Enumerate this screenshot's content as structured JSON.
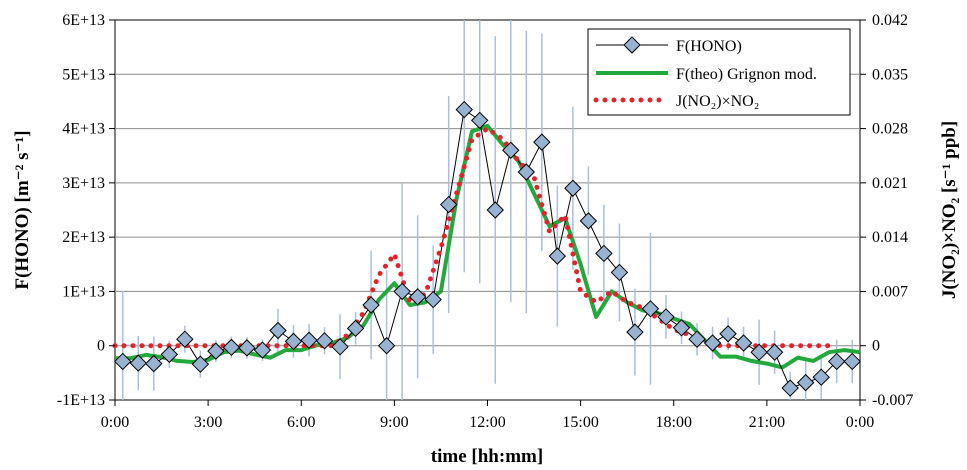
{
  "chart_data": {
    "type": "line",
    "title": "",
    "xlabel": "time [hh:mm]",
    "ylabel": "F(HONO) [m⁻² s⁻¹]",
    "y2label": "J(NO₂)×NO₂ [s⁻¹ ppb]",
    "xlim": [
      0,
      24
    ],
    "ylim": [
      -10000000000000.0,
      60000000000000.0
    ],
    "y2lim": [
      -0.007,
      0.042
    ],
    "grid": "horizontal",
    "legend_position": "top-right",
    "x_ticks": [
      0,
      3,
      6,
      9,
      12,
      15,
      18,
      21,
      24
    ],
    "x_tick_labels": [
      "0:00",
      "3:00",
      "6:00",
      "9:00",
      "12:00",
      "15:00",
      "18:00",
      "21:00",
      "0:00"
    ],
    "y_ticks": [
      -10000000000000.0,
      0,
      10000000000000.0,
      20000000000000.0,
      30000000000000.0,
      40000000000000.0,
      50000000000000.0,
      60000000000000.0
    ],
    "y_tick_labels": [
      "-1E+13",
      "0",
      "1E+13",
      "2E+13",
      "3E+13",
      "4E+13",
      "5E+13",
      "6E+13"
    ],
    "y2_ticks": [
      -0.007,
      0,
      0.007,
      0.014,
      0.021,
      0.028,
      0.035,
      0.042
    ],
    "y2_tick_labels": [
      "-0.007",
      "0",
      "0.007",
      "0.014",
      "0.021",
      "0.028",
      "0.035",
      "0.042"
    ],
    "series": [
      {
        "name": "F(HONO)",
        "axis": "left",
        "color": "#000000",
        "marker": "diamond",
        "marker_fill": "#98b3d2",
        "errorbar_color": "#a9c0dc",
        "x": [
          0.25,
          0.75,
          1.25,
          1.75,
          2.25,
          2.75,
          3.25,
          3.75,
          4.25,
          4.75,
          5.25,
          5.75,
          6.25,
          6.75,
          7.25,
          7.75,
          8.25,
          8.75,
          9.25,
          9.75,
          10.25,
          10.75,
          11.25,
          11.75,
          12.25,
          12.75,
          13.25,
          13.75,
          14.25,
          14.75,
          15.25,
          15.75,
          16.25,
          16.75,
          17.25,
          17.75,
          18.25,
          18.75,
          19.25,
          19.75,
          20.25,
          20.75,
          21.25,
          21.75,
          22.25,
          22.75,
          23.25,
          23.75
        ],
        "values": [
          -2900000000000.0,
          -3200000000000.0,
          -3300000000000.0,
          -1600000000000.0,
          1200000000000.0,
          -3400000000000.0,
          -1000000000000.0,
          -300000000000.0,
          -400000000000.0,
          -800000000000.0,
          2800000000000.0,
          800000000000.0,
          1000000000000.0,
          900000000000.0,
          -200000000000.0,
          3200000000000.0,
          7500000000000.0,
          0,
          10000000000000.0,
          9000000000000.0,
          8500000000000.0,
          26000000000000.0,
          43500000000000.0,
          41500000000000.0,
          25000000000000.0,
          36000000000000.0,
          32000000000000.0,
          37500000000000.0,
          16500000000000.0,
          29000000000000.0,
          23000000000000.0,
          17000000000000.0,
          13500000000000.0,
          2500000000000.0,
          6800000000000.0,
          5300000000000.0,
          3300000000000.0,
          1200000000000.0,
          500000000000.0,
          2200000000000.0,
          500000000000.0,
          -1200000000000.0,
          -1200000000000.0,
          -7800000000000.0,
          -6800000000000.0,
          -5800000000000.0,
          -2900000000000.0,
          -2900000000000.0
        ],
        "errors": [
          13000000000000.0,
          5000000000000.0,
          5000000000000.0,
          2500000000000.0,
          2500000000000.0,
          2500000000000.0,
          2000000000000.0,
          2000000000000.0,
          2000000000000.0,
          2000000000000.0,
          4000000000000.0,
          3000000000000.0,
          3000000000000.0,
          2500000000000.0,
          6000000000000.0,
          3000000000000.0,
          10000000000000.0,
          14000000000000.0,
          20000000000000.0,
          15000000000000.0,
          10000000000000.0,
          20000000000000.0,
          30000000000000.0,
          30000000000000.0,
          32000000000000.0,
          28000000000000.0,
          26000000000000.0,
          20000000000000.0,
          13000000000000.0,
          15000000000000.0,
          10000000000000.0,
          9000000000000.0,
          9000000000000.0,
          8000000000000.0,
          14000000000000.0,
          4000000000000.0,
          3000000000000.0,
          3000000000000.0,
          3000000000000.0,
          3000000000000.0,
          3000000000000.0,
          6000000000000.0,
          4000000000000.0,
          3000000000000.0,
          4000000000000.0,
          4000000000000.0,
          4000000000000.0,
          4000000000000.0
        ]
      },
      {
        "name": "F(theo) Grignon mod.",
        "axis": "left",
        "color": "#23a83b",
        "x": [
          0,
          0.5,
          1,
          1.5,
          2,
          2.5,
          3,
          3.5,
          4,
          4.5,
          5,
          5.5,
          6,
          6.5,
          7,
          7.5,
          8,
          8.5,
          9,
          9.5,
          10,
          10.5,
          11,
          11.5,
          12,
          12.5,
          13,
          13.5,
          14,
          14.5,
          15,
          15.5,
          16,
          16.5,
          17,
          17.5,
          18,
          18.5,
          19,
          19.5,
          20,
          20.5,
          21,
          21.5,
          22,
          22.5,
          23,
          23.5,
          24
        ],
        "values": [
          -2300000000000.0,
          -2300000000000.0,
          -1700000000000.0,
          -2100000000000.0,
          -2800000000000.0,
          -3000000000000.0,
          -2600000000000.0,
          -1200000000000.0,
          -900000000000.0,
          -1600000000000.0,
          -2200000000000.0,
          -800000000000.0,
          -800000000000.0,
          100000000000.0,
          500000000000.0,
          1500000000000.0,
          3700000000000.0,
          8500000000000.0,
          11500000000000.0,
          7500000000000.0,
          8000000000000.0,
          10000000000000.0,
          27000000000000.0,
          39500000000000.0,
          40500000000000.0,
          37000000000000.0,
          34000000000000.0,
          28000000000000.0,
          22000000000000.0,
          23500000000000.0,
          15000000000000.0,
          5300000000000.0,
          10000000000000.0,
          8000000000000.0,
          6500000000000.0,
          6000000000000.0,
          5000000000000.0,
          4000000000000.0,
          1000000000000.0,
          -2000000000000.0,
          -2000000000000.0,
          -2800000000000.0,
          -3300000000000.0,
          -4000000000000.0,
          -2200000000000.0,
          -2800000000000.0,
          -1200000000000.0,
          -800000000000.0,
          -1200000000000.0
        ]
      },
      {
        "name": "J(NO₂)×NO₂",
        "axis": "right",
        "color": "#e8202a",
        "marker": "dotted",
        "x": [
          0,
          0.5,
          1,
          1.5,
          2,
          2.5,
          3,
          3.5,
          4,
          4.5,
          5,
          5.5,
          6,
          6.5,
          7,
          7.5,
          8,
          8.5,
          9,
          9.5,
          10,
          10.5,
          11,
          11.5,
          12,
          12.5,
          13,
          13.5,
          14,
          14.5,
          15,
          15.5,
          16,
          16.5,
          17,
          17.5,
          18,
          18.5,
          19,
          19.5,
          20,
          20.5,
          21,
          21.5,
          22,
          22.5,
          23
        ],
        "values": [
          0,
          0,
          0,
          0,
          0,
          0,
          0,
          0,
          0,
          0,
          0,
          0,
          0,
          0,
          0,
          0.0014,
          0.0042,
          0.0091,
          0.0118,
          0.0056,
          0.0067,
          0.0126,
          0.0196,
          0.0266,
          0.028,
          0.0266,
          0.0238,
          0.0217,
          0.0147,
          0.0168,
          0.007,
          0.0056,
          0.007,
          0.0056,
          0.0049,
          0.0035,
          0.0021,
          0.0014,
          0.0007,
          0,
          0,
          0,
          0,
          0,
          0,
          0,
          0
        ]
      }
    ]
  }
}
